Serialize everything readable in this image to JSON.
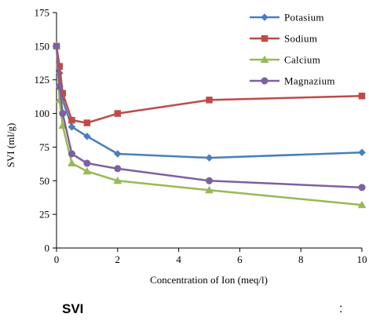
{
  "chart_data": {
    "type": "line",
    "xlabel": "Concentration of Ion (meq/l)",
    "ylabel": "SVI (ml/g)",
    "xlim": [
      0,
      10
    ],
    "ylim": [
      0,
      175
    ],
    "x_ticks": [
      0,
      2,
      4,
      6,
      8,
      10
    ],
    "y_ticks": [
      0,
      25,
      50,
      75,
      100,
      125,
      150,
      175
    ],
    "grid": false,
    "legend_position": "top-right",
    "series": [
      {
        "name": "Potasium",
        "color": "#4a7ebb",
        "marker": "diamond",
        "x": [
          0,
          0.1,
          0.2,
          0.5,
          1,
          2,
          5,
          10
        ],
        "y": [
          150,
          130,
          110,
          90,
          83,
          70,
          67,
          71
        ]
      },
      {
        "name": "Sodium",
        "color": "#be4b48",
        "marker": "square",
        "x": [
          0,
          0.1,
          0.2,
          0.5,
          1,
          2,
          5,
          10
        ],
        "y": [
          150,
          135,
          115,
          95,
          93,
          100,
          110,
          113
        ]
      },
      {
        "name": "Calcium",
        "color": "#98b954",
        "marker": "triangle",
        "x": [
          0,
          0.1,
          0.2,
          0.5,
          1,
          2,
          5,
          10
        ],
        "y": [
          150,
          110,
          91,
          63,
          57,
          50,
          43,
          32
        ]
      },
      {
        "name": "Magnazium",
        "color": "#7d60a0",
        "marker": "circle",
        "x": [
          0,
          0.1,
          0.2,
          0.5,
          1,
          2,
          5,
          10
        ],
        "y": [
          150,
          120,
          100,
          70,
          63,
          59,
          50,
          45
        ]
      }
    ]
  },
  "caption": {
    "label": "SVI",
    "colon": ":"
  }
}
